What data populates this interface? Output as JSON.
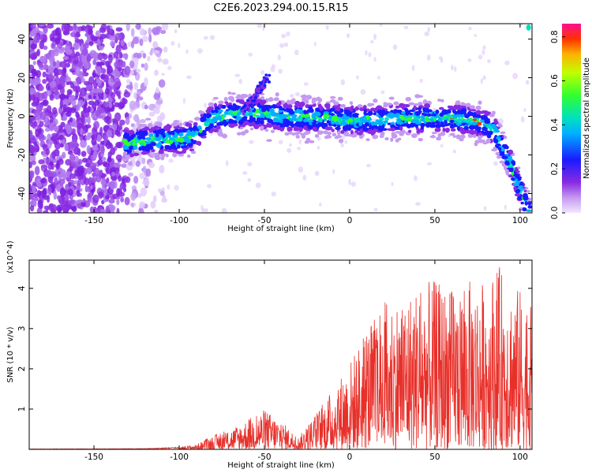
{
  "title": "C2E6.2023.294.00.15.R15",
  "chart_data": [
    {
      "type": "heatmap",
      "xlabel": "Height of straight line (km)",
      "ylabel": "Frequency (Hz)",
      "xlim": [
        -188,
        107
      ],
      "ylim": [
        -50,
        48
      ],
      "x_ticks": [
        -150,
        -100,
        -50,
        0,
        50,
        100
      ],
      "y_ticks": [
        -40,
        -20,
        0,
        20,
        40
      ],
      "colorbar": {
        "label": "Normalized spectral amplitude",
        "range": [
          0.0,
          0.86
        ],
        "ticks": [
          0.0,
          0.2,
          0.4,
          0.6,
          0.8
        ]
      },
      "ridge": [
        {
          "x": -130,
          "y": -14
        },
        {
          "x": -120,
          "y": -13
        },
        {
          "x": -110,
          "y": -12
        },
        {
          "x": -100,
          "y": -12
        },
        {
          "x": -90,
          "y": -10
        },
        {
          "x": -85,
          "y": -4
        },
        {
          "x": -80,
          "y": -1
        },
        {
          "x": -70,
          "y": 1
        },
        {
          "x": -60,
          "y": 2
        },
        {
          "x": -50,
          "y": 1
        },
        {
          "x": -40,
          "y": 0
        },
        {
          "x": -30,
          "y": 0
        },
        {
          "x": -20,
          "y": -1
        },
        {
          "x": -10,
          "y": -1
        },
        {
          "x": 0,
          "y": -2
        },
        {
          "x": 10,
          "y": -2
        },
        {
          "x": 20,
          "y": -2
        },
        {
          "x": 30,
          "y": -1
        },
        {
          "x": 40,
          "y": -1
        },
        {
          "x": 50,
          "y": -1
        },
        {
          "x": 60,
          "y": -1
        },
        {
          "x": 70,
          "y": -2
        },
        {
          "x": 80,
          "y": -4
        },
        {
          "x": 85,
          "y": -8
        },
        {
          "x": 90,
          "y": -16
        },
        {
          "x": 95,
          "y": -26
        },
        {
          "x": 100,
          "y": -38
        },
        {
          "x": 105,
          "y": -50
        }
      ]
    },
    {
      "type": "line",
      "xlabel": "Height of straight line (km)",
      "ylabel": "SNR (10 * v/v)",
      "y_multiplier": "(x10^4)",
      "xlim": [
        -188,
        107
      ],
      "ylim": [
        0,
        4.7
      ],
      "x_ticks": [
        -150,
        -100,
        -50,
        0,
        50,
        100
      ],
      "y_ticks": [
        1,
        2,
        3,
        4
      ],
      "color": "#e8302a",
      "envelope": [
        {
          "x": -188,
          "y": 0.01
        },
        {
          "x": -120,
          "y": 0.02
        },
        {
          "x": -100,
          "y": 0.06
        },
        {
          "x": -90,
          "y": 0.12
        },
        {
          "x": -80,
          "y": 0.35
        },
        {
          "x": -70,
          "y": 0.5
        },
        {
          "x": -60,
          "y": 0.75
        },
        {
          "x": -50,
          "y": 1.0
        },
        {
          "x": -40,
          "y": 0.7
        },
        {
          "x": -30,
          "y": 0.3
        },
        {
          "x": -20,
          "y": 0.9
        },
        {
          "x": -10,
          "y": 1.5
        },
        {
          "x": 0,
          "y": 2.2
        },
        {
          "x": 10,
          "y": 3.0
        },
        {
          "x": 20,
          "y": 3.7
        },
        {
          "x": 30,
          "y": 3.8
        },
        {
          "x": 40,
          "y": 4.1
        },
        {
          "x": 50,
          "y": 4.2
        },
        {
          "x": 60,
          "y": 4.0
        },
        {
          "x": 70,
          "y": 4.2
        },
        {
          "x": 80,
          "y": 4.2
        },
        {
          "x": 87,
          "y": 4.6
        },
        {
          "x": 95,
          "y": 4.1
        },
        {
          "x": 100,
          "y": 4.0
        },
        {
          "x": 107,
          "y": 3.5
        }
      ]
    }
  ]
}
